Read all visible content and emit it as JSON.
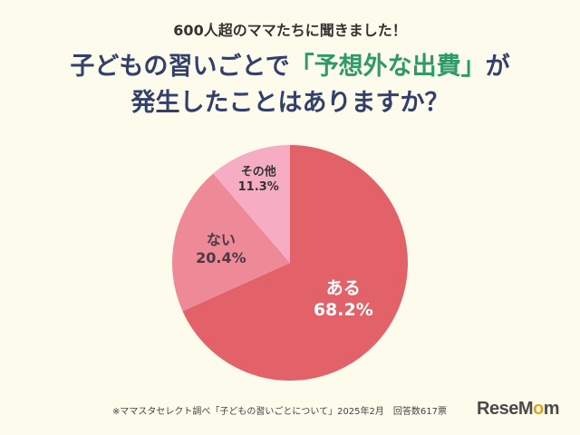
{
  "header": {
    "kicker": "600人超のママたちに聞きました！",
    "title_pre": "子どもの習いごとで",
    "title_highlight": "「予想外な出費」",
    "title_post": "が",
    "title_line2": "発生したことはありますか？"
  },
  "chart_data": {
    "type": "pie",
    "slices": [
      {
        "label": "ある",
        "value": 68.2,
        "value_label": "68.2%",
        "color": "#e3626a",
        "label_color": "#ffffff"
      },
      {
        "label": "ない",
        "value": 20.4,
        "value_label": "20.4%",
        "color": "#ee8a98",
        "label_color": "#4a3a44"
      },
      {
        "label": "その他",
        "value": 11.3,
        "value_label": "11.3%",
        "color": "#f6adc4",
        "label_color": "#333333"
      }
    ]
  },
  "footnote": "※ママスタセレクト調べ「子どもの習いごとについて」2025年2月　回答数617票",
  "logo": {
    "part1": "ReseM",
    "part2": "o",
    "part3": "m"
  }
}
